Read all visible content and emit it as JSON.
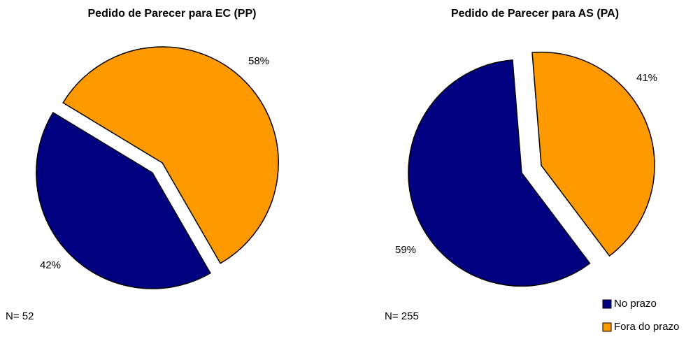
{
  "chart_data": [
    {
      "type": "pie",
      "title": "Pedido de Parecer para EC (PP)",
      "categories": [
        "No prazo",
        "Fora do prazo"
      ],
      "values": [
        42,
        58
      ],
      "value_labels": [
        "42%",
        "58%"
      ],
      "colors": [
        "#000080",
        "#ff9900"
      ],
      "annotation": "N= 52"
    },
    {
      "type": "pie",
      "title": "Pedido de Parecer para AS (PA)",
      "categories": [
        "No prazo",
        "Fora do prazo"
      ],
      "values": [
        59,
        41
      ],
      "value_labels": [
        "59%",
        "41%"
      ],
      "colors": [
        "#000080",
        "#ff9900"
      ],
      "annotation": "N= 255",
      "legend": "bottom-right"
    }
  ]
}
